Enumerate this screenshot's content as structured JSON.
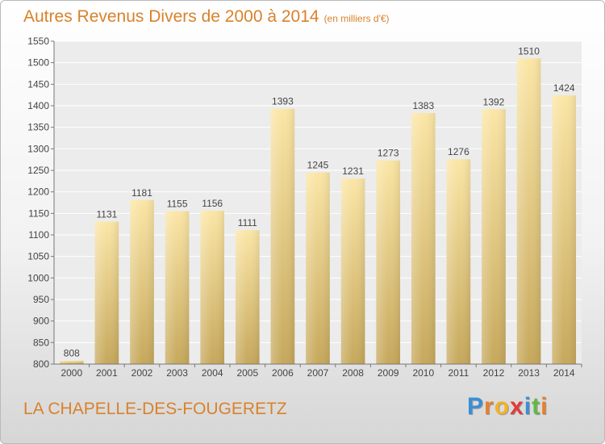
{
  "header": {
    "title": "Autres Revenus Divers de 2000 à 2014",
    "unit": "(en milliers d'€)"
  },
  "footer": {
    "location": "LA CHAPELLE-DES-FOUGERETZ",
    "logo_letters": [
      "P",
      "r",
      "o",
      "x",
      "i",
      "t",
      "i"
    ],
    "logo_colors": [
      "#3a8fd4",
      "#e8802a",
      "#f2b327",
      "#e03b3b",
      "#3a8fd4",
      "#62b845",
      "#e8802a"
    ]
  },
  "colors": {
    "title": "#d9822b",
    "bar_light": "#fbe6a6",
    "bar_dark": "#c6a85c"
  },
  "chart_data": {
    "type": "bar",
    "categories": [
      "2000",
      "2001",
      "2002",
      "2003",
      "2004",
      "2005",
      "2006",
      "2007",
      "2008",
      "2009",
      "2010",
      "2011",
      "2012",
      "2013",
      "2014"
    ],
    "values": [
      808,
      1131,
      1181,
      1155,
      1156,
      1111,
      1393,
      1245,
      1231,
      1273,
      1383,
      1276,
      1392,
      1510,
      1424
    ],
    "ylim": [
      800,
      1550
    ],
    "yticks": [
      800,
      850,
      900,
      950,
      1000,
      1050,
      1100,
      1150,
      1200,
      1250,
      1300,
      1350,
      1400,
      1450,
      1500,
      1550
    ],
    "grid": true,
    "legend": "none"
  }
}
